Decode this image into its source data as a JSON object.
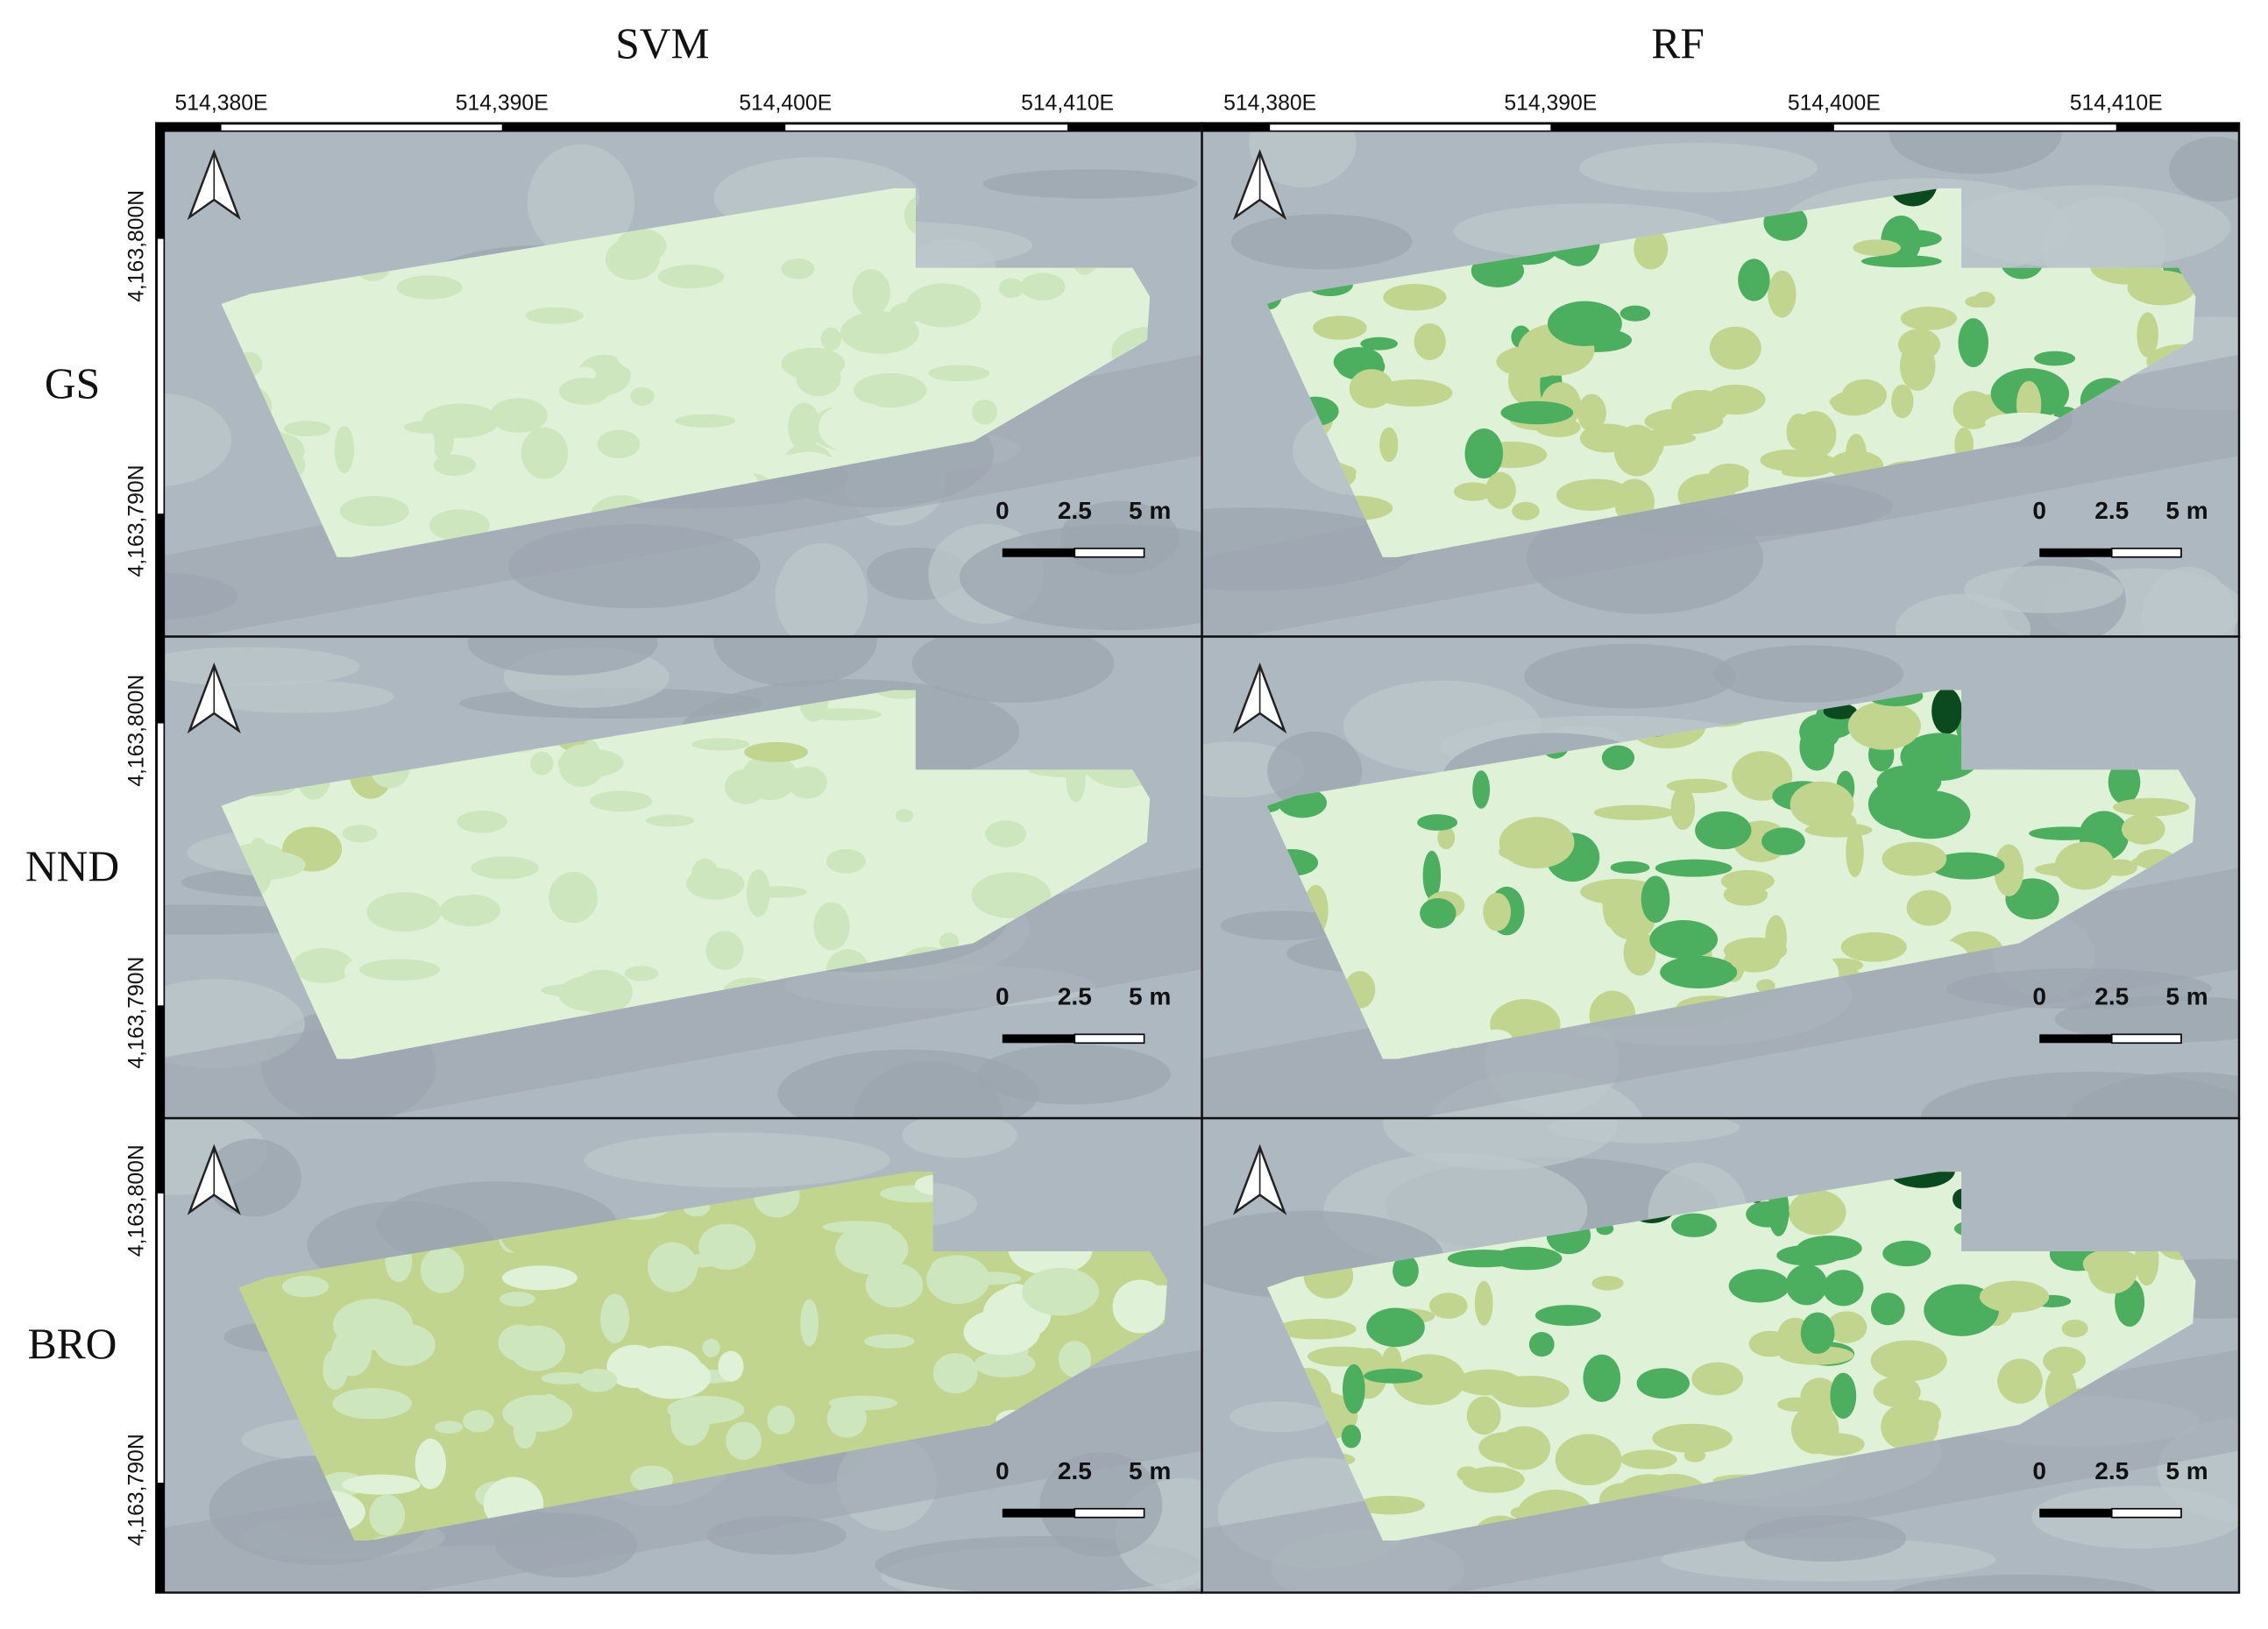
{
  "columns": [
    "SVM",
    "RF"
  ],
  "rows": [
    "GS",
    "NND",
    "BRO"
  ],
  "x_labels": [
    "514,380E",
    "514,390E",
    "514,400E",
    "514,410E"
  ],
  "y_labels": [
    "4,163,800N",
    "4,163,790N"
  ],
  "scale_labels": [
    "0",
    "2.5",
    "5 m"
  ]
}
